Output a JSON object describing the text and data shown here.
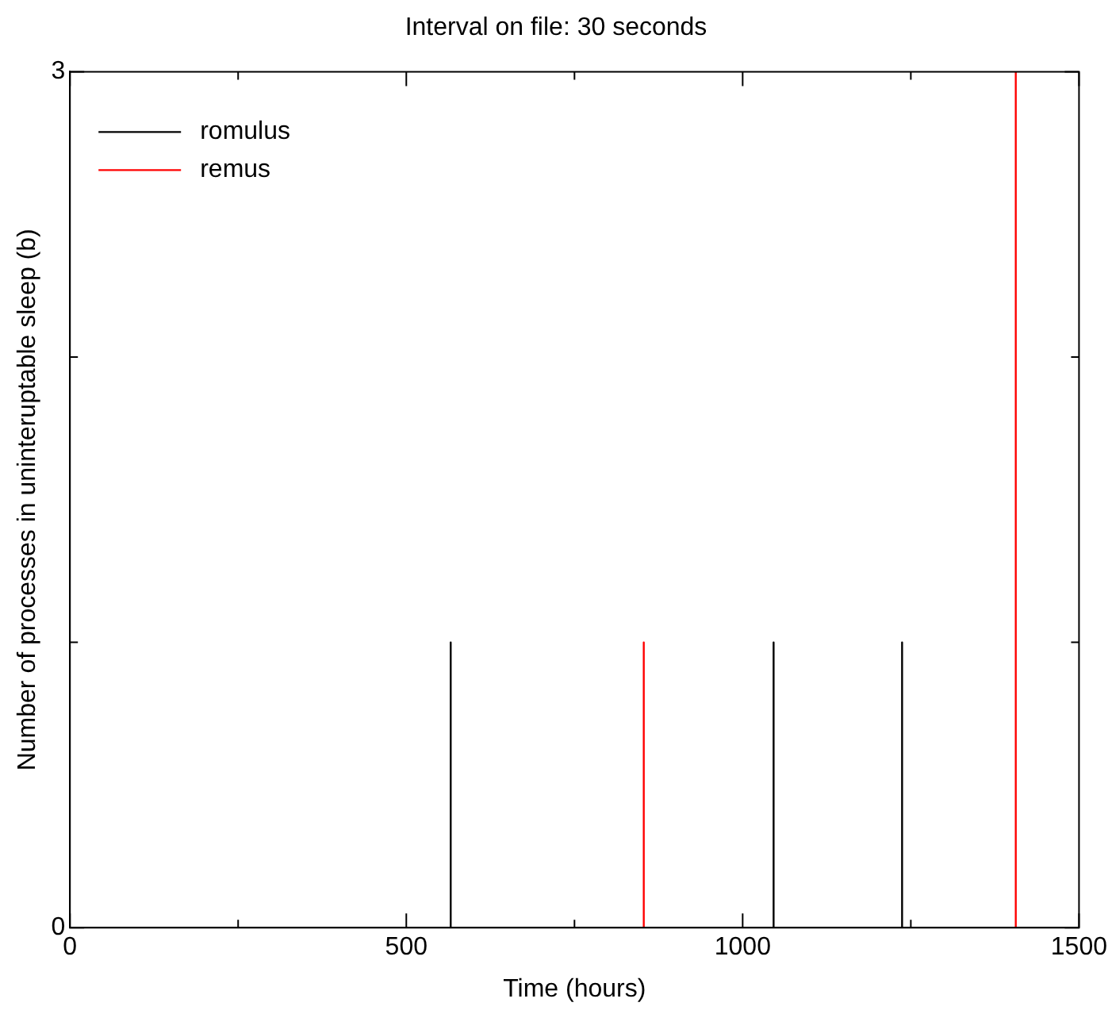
{
  "chart_data": {
    "type": "line",
    "title": "Interval on file: 30 seconds",
    "xlabel": "Time (hours)",
    "ylabel": "Number of processes in uninteruptable sleep (b)",
    "xlim": [
      0,
      1500
    ],
    "xticks": [
      0,
      {
        "value": 250,
        "label": null
      },
      500,
      {
        "value": 750,
        "label": null
      },
      1000,
      {
        "value": 1250,
        "label": null
      },
      1500
    ],
    "ylim": [
      0,
      3
    ],
    "yticks": [
      0,
      {
        "value": 1,
        "label": null
      },
      {
        "value": 2,
        "label": null
      },
      3
    ],
    "grid": false,
    "legend": "top left",
    "marker": "none",
    "line_style": "solid",
    "series": [
      {
        "name": "romulus",
        "color": "#000000",
        "x": [
          0,
          566,
          566,
          566,
          1046,
          1046,
          1046,
          1237,
          1237,
          1237,
          1500
        ],
        "values": [
          0,
          0,
          1,
          0,
          0,
          1,
          0,
          0,
          1,
          0,
          0
        ]
      },
      {
        "name": "remus",
        "color": "#ff0000",
        "x": [
          0,
          853,
          853,
          853,
          1406,
          1406,
          1406,
          1500
        ],
        "values": [
          0,
          0,
          1,
          0,
          0,
          3,
          0,
          0
        ]
      }
    ]
  }
}
